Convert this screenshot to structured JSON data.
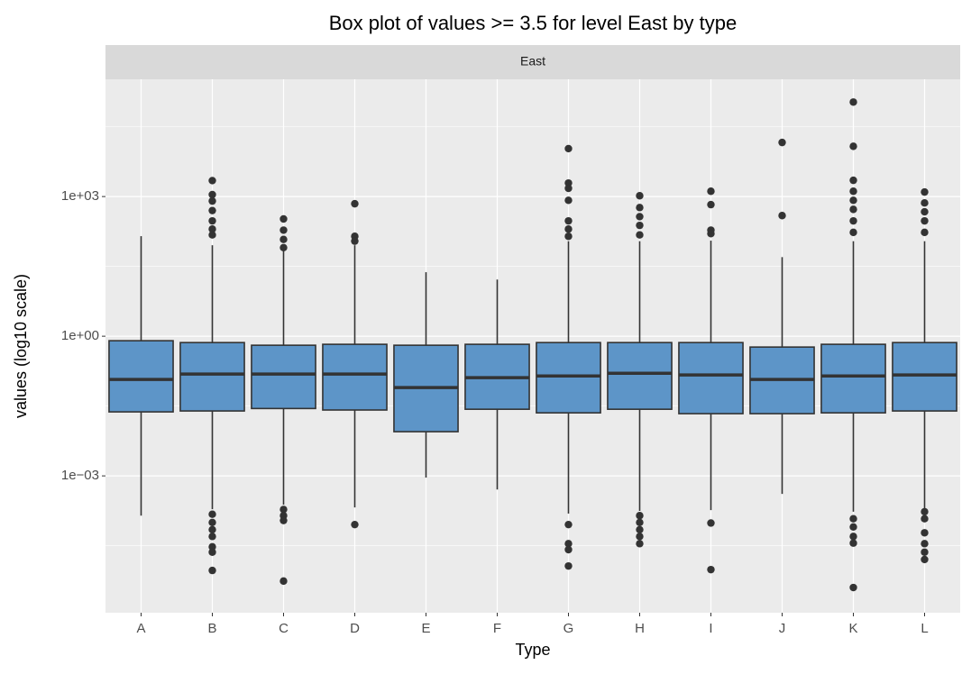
{
  "chart_data": {
    "type": "box",
    "title": "Box plot of values >= 3.5 for level East by type",
    "facet_label": "East",
    "x_label": "Type",
    "y_label": "values (log10 scale)",
    "log_y": true,
    "grid": true,
    "fill_color": "#5d95c8",
    "line_color": "#333333",
    "ylim": [
      1.15e-06,
      330000
    ],
    "yticks": [
      {
        "value": 1000,
        "label": "1e+03"
      },
      {
        "value": 1,
        "label": "1e+00"
      },
      {
        "value": 0.001,
        "label": "1e−03"
      }
    ],
    "minor_yticks": [
      31623,
      31.6,
      0.0316,
      3.16e-05
    ],
    "categories": [
      "A",
      "B",
      "C",
      "D",
      "E",
      "F",
      "G",
      "H",
      "I",
      "J",
      "K",
      "L"
    ],
    "boxes": [
      {
        "whisker_low": 0.00014,
        "q1": 0.0237,
        "median": 0.118,
        "q3": 0.8,
        "whisker_high": 141,
        "outliers": []
      },
      {
        "whisker_low": 0.000192,
        "q1": 0.0248,
        "median": 0.154,
        "q3": 0.73,
        "whisker_high": 90,
        "outliers": [
          2200,
          1100,
          800,
          500,
          300,
          200,
          150,
          0.00015,
          0.0001,
          7e-05,
          5e-05,
          3e-05,
          2.3e-05,
          9.3e-06
        ]
      },
      {
        "whisker_low": 0.00024,
        "q1": 0.028,
        "median": 0.154,
        "q3": 0.64,
        "whisker_high": 69,
        "outliers": [
          330,
          190,
          120,
          80,
          0.00019,
          0.00014,
          0.00011,
          5.5e-06
        ]
      },
      {
        "whisker_low": 0.00021,
        "q1": 0.026,
        "median": 0.154,
        "q3": 0.67,
        "whisker_high": 90,
        "outliers": [
          700,
          140,
          110,
          9e-05
        ]
      },
      {
        "whisker_low": 0.00092,
        "q1": 0.0089,
        "median": 0.079,
        "q3": 0.64,
        "whisker_high": 23.7,
        "outliers": []
      },
      {
        "whisker_low": 0.00051,
        "q1": 0.027,
        "median": 0.129,
        "q3": 0.67,
        "whisker_high": 16.5,
        "outliers": []
      },
      {
        "whisker_low": 0.000155,
        "q1": 0.0226,
        "median": 0.14,
        "q3": 0.73,
        "whisker_high": 110,
        "outliers": [
          10700,
          1950,
          1500,
          830,
          300,
          200,
          140,
          9e-05,
          3.5e-05,
          2.6e-05,
          1.16e-05
        ]
      },
      {
        "whisker_low": 0.000177,
        "q1": 0.027,
        "median": 0.16,
        "q3": 0.73,
        "whisker_high": 110,
        "outliers": [
          1040,
          580,
          370,
          240,
          150,
          0.00014,
          0.0001,
          7e-05,
          5e-05,
          3.5e-05
        ]
      },
      {
        "whisker_low": 0.000184,
        "q1": 0.0217,
        "median": 0.147,
        "q3": 0.73,
        "whisker_high": 113,
        "outliers": [
          1300,
          670,
          190,
          160,
          9.7e-05,
          9.7e-06
        ]
      },
      {
        "whisker_low": 0.00041,
        "q1": 0.0217,
        "median": 0.118,
        "q3": 0.585,
        "whisker_high": 50,
        "outliers": [
          14500,
          390
        ]
      },
      {
        "whisker_low": 0.00017,
        "q1": 0.0226,
        "median": 0.14,
        "q3": 0.67,
        "whisker_high": 110,
        "outliers": [
          107000,
          12000,
          2230,
          1300,
          830,
          530,
          300,
          170,
          0.00012,
          8e-05,
          5e-05,
          3.6e-05,
          4e-06
        ]
      },
      {
        "whisker_low": 0.000192,
        "q1": 0.0248,
        "median": 0.147,
        "q3": 0.73,
        "whisker_high": 110,
        "outliers": [
          1250,
          730,
          470,
          300,
          170,
          0.00017,
          0.00012,
          6e-05,
          3.5e-05,
          2.3e-05,
          1.6e-05
        ]
      }
    ]
  }
}
